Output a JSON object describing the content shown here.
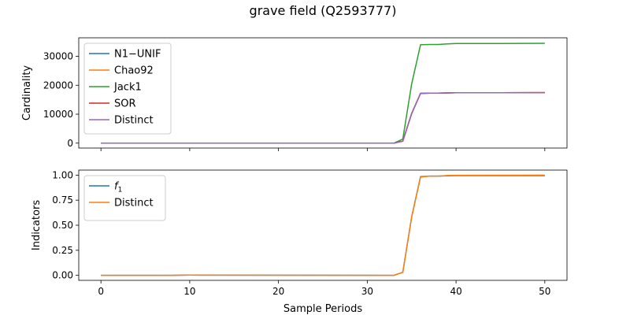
{
  "figure": {
    "title": "grave field (Q2593777)"
  },
  "chart_data": [
    {
      "type": "line",
      "ylabel": "Cardinality",
      "xlabel": "",
      "xlim": [
        -2.5,
        52.5
      ],
      "ylim": [
        -1700,
        36400
      ],
      "xticks": [
        "0",
        "10",
        "20",
        "30",
        "40",
        "50"
      ],
      "yticks": [
        {
          "value": 0,
          "label": "0"
        },
        {
          "value": 10000,
          "label": "10000"
        },
        {
          "value": 20000,
          "label": "20000"
        },
        {
          "value": 30000,
          "label": "30000"
        }
      ],
      "x_tick_labels_visible": false,
      "grid": false,
      "legend_position": "upper left",
      "x": [
        0,
        10,
        20,
        30,
        33,
        34,
        35,
        36,
        37,
        38,
        39,
        40,
        45,
        50
      ],
      "series": [
        {
          "name": "N1−UNIF",
          "color": "#1f77b4",
          "values": [
            0,
            0,
            0,
            0,
            0,
            700,
            10200,
            17200,
            17300,
            17300,
            17350,
            17400,
            17400,
            17450
          ]
        },
        {
          "name": "Chao92",
          "color": "#ff7f0e",
          "values": [
            0,
            0,
            0,
            0,
            0,
            700,
            10200,
            17200,
            17300,
            17300,
            17350,
            17400,
            17400,
            17450
          ]
        },
        {
          "name": "Jack1",
          "color": "#2ca02c",
          "values": [
            0,
            0,
            0,
            0,
            0,
            1400,
            20400,
            34000,
            34100,
            34100,
            34300,
            34400,
            34400,
            34500
          ]
        },
        {
          "name": "SOR",
          "color": "#d62728",
          "values": [
            0,
            0,
            0,
            0,
            0,
            700,
            10200,
            17200,
            17300,
            17300,
            17350,
            17400,
            17400,
            17450
          ]
        },
        {
          "name": "Distinct",
          "color": "#9467bd",
          "values": [
            0,
            0,
            0,
            0,
            0,
            700,
            10200,
            17200,
            17300,
            17300,
            17350,
            17400,
            17400,
            17450
          ]
        }
      ]
    },
    {
      "type": "line",
      "ylabel": "Indicators",
      "xlabel": "Sample Periods",
      "xlim": [
        -2.5,
        52.5
      ],
      "ylim": [
        -0.05,
        1.05
      ],
      "xticks": [
        "0",
        "10",
        "20",
        "30",
        "40",
        "50"
      ],
      "yticks": [
        {
          "value": 0,
          "label": "0.00"
        },
        {
          "value": 0.25,
          "label": "0.25"
        },
        {
          "value": 0.5,
          "label": "0.50"
        },
        {
          "value": 0.75,
          "label": "0.75"
        },
        {
          "value": 1,
          "label": "1.00"
        }
      ],
      "x_tick_labels_visible": true,
      "grid": false,
      "legend_position": "upper left",
      "x": [
        0,
        8,
        10,
        33,
        34,
        35,
        36,
        37,
        38,
        39,
        40,
        45,
        50
      ],
      "series": [
        {
          "name": "f₁",
          "color": "#1f77b4",
          "values": [
            0,
            0,
            0.003,
            0,
            0.03,
            0.58,
            0.985,
            0.99,
            0.99,
            0.993,
            0.995,
            0.995,
            0.995
          ]
        },
        {
          "name": "Distinct",
          "color": "#ff7f0e",
          "values": [
            0,
            0,
            0.003,
            0,
            0.03,
            0.58,
            0.98,
            0.99,
            0.99,
            0.996,
            0.998,
            0.999,
            1.0
          ]
        }
      ]
    }
  ]
}
